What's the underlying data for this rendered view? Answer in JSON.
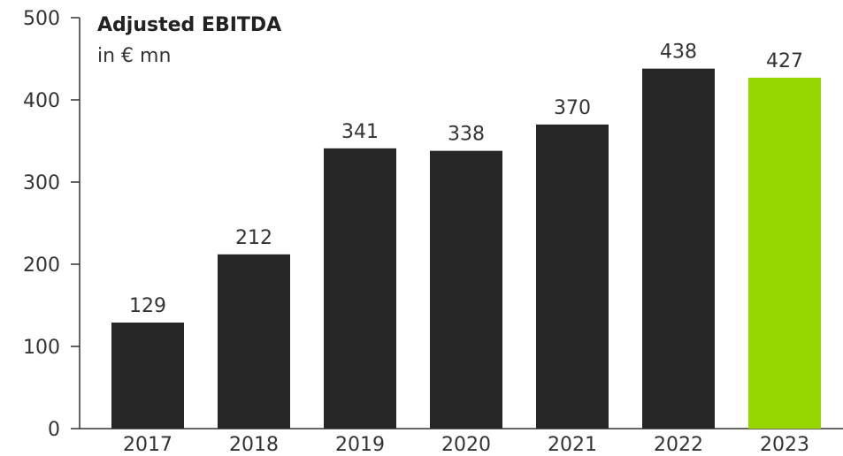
{
  "chart_data": {
    "type": "bar",
    "title": "Adjusted EBITDA",
    "subtitle": "in € mn",
    "categories": [
      "2017",
      "2018",
      "2019",
      "2020",
      "2021",
      "2022",
      "2023"
    ],
    "values": [
      129,
      212,
      341,
      338,
      370,
      438,
      427
    ],
    "ylim": [
      0,
      500
    ],
    "yticks": [
      0,
      100,
      200,
      300,
      400,
      500
    ],
    "grid": false,
    "colors": {
      "default_bar": "#262626",
      "highlight_bar": "#95D600",
      "axis": "#333333"
    },
    "highlight_category": "2023"
  }
}
